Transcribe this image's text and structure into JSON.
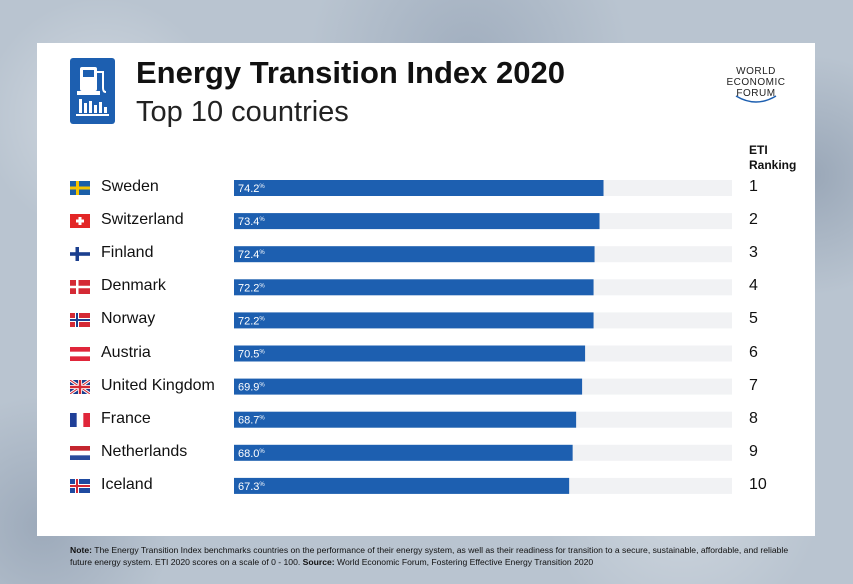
{
  "header": {
    "title": "Energy Transition Index 2020",
    "subtitle": "Top 10 countries",
    "logo_lines": [
      "WORLD",
      "ECONOMIC",
      "FORUM"
    ]
  },
  "rank_header_line1": "ETI",
  "rank_header_line2": "Ranking",
  "colors": {
    "bar": "#1d5fb0",
    "track": "#f1f2f4",
    "background": "#b9c4d0"
  },
  "chart_data": {
    "type": "bar",
    "orientation": "horizontal",
    "title": "Energy Transition Index 2020",
    "subtitle": "Top 10 countries",
    "xlim": [
      0,
      100
    ],
    "value_unit": "%",
    "categories": [
      "Sweden",
      "Switzerland",
      "Finland",
      "Denmark",
      "Norway",
      "Austria",
      "United Kingdom",
      "France",
      "Netherlands",
      "Iceland"
    ],
    "values": [
      74.2,
      73.4,
      72.4,
      72.2,
      72.2,
      70.5,
      69.9,
      68.7,
      68.0,
      67.3
    ],
    "value_labels": [
      "74.2",
      "73.4",
      "72.4",
      "72.2",
      "72.2",
      "70.5",
      "69.9",
      "68.7",
      "68.0",
      "67.3"
    ],
    "ranks": [
      "1",
      "2",
      "3",
      "4",
      "5",
      "6",
      "7",
      "8",
      "9",
      "10"
    ],
    "flags": [
      "sweden-flag-icon",
      "switzerland-flag-icon",
      "finland-flag-icon",
      "denmark-flag-icon",
      "norway-flag-icon",
      "austria-flag-icon",
      "united-kingdom-flag-icon",
      "france-flag-icon",
      "netherlands-flag-icon",
      "iceland-flag-icon"
    ]
  },
  "note": {
    "label": "Note:",
    "text": "The Energy Transition Index benchmarks countries on the performance of their energy system, as well as their readiness for transition to a secure, sustainable, affordable, and reliable future energy system. ETI 2020 scores on a scale of 0 - 100.",
    "source_label": "Source:",
    "source_text": "World Economic Forum, Fostering Effective Energy Transition 2020"
  }
}
